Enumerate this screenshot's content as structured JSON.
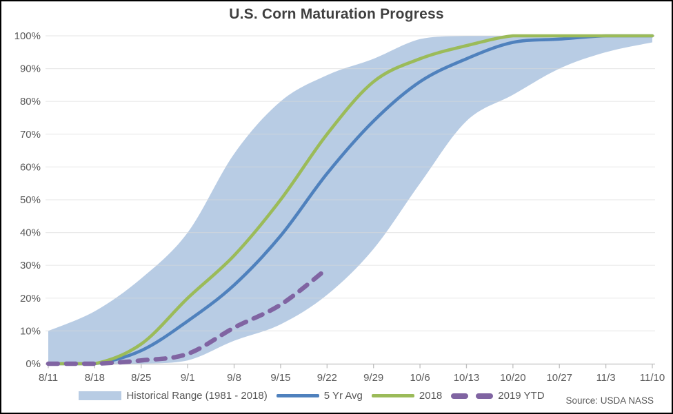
{
  "title": "U.S. Corn Maturation Progress",
  "source": "Source: USDA NASS",
  "chart_data": {
    "type": "area",
    "title": "U.S. Corn Maturation Progress",
    "xlabel": "",
    "ylabel": "",
    "ylim": [
      0,
      100
    ],
    "grid": true,
    "legend_position": "bottom",
    "y_ticks": [
      "0%",
      "10%",
      "20%",
      "30%",
      "40%",
      "50%",
      "60%",
      "70%",
      "80%",
      "90%",
      "100%"
    ],
    "categories": [
      "8/11",
      "8/18",
      "8/25",
      "9/1",
      "9/8",
      "9/15",
      "9/22",
      "9/29",
      "10/6",
      "10/13",
      "10/20",
      "10/27",
      "11/3",
      "11/10"
    ],
    "series": [
      {
        "name": "Historical Range (1981 - 2018)",
        "type": "band",
        "color": "#b8cce4",
        "top": [
          10,
          16,
          26,
          40,
          64,
          80,
          88,
          93,
          99,
          100,
          100,
          100,
          100,
          100
        ],
        "bottom": [
          0,
          0,
          0,
          1,
          7,
          12,
          21,
          35,
          55,
          74,
          82,
          90,
          95,
          98
        ]
      },
      {
        "name": "5 Yr Avg",
        "type": "line",
        "color": "#4f81bd",
        "values": [
          0,
          0,
          4,
          13,
          24,
          39,
          58,
          74,
          86,
          93,
          98,
          99,
          100,
          100
        ]
      },
      {
        "name": "2018",
        "type": "line",
        "color": "#9bbb59",
        "values": [
          0,
          0,
          6,
          20,
          33,
          50,
          70,
          86,
          93,
          97,
          100,
          100,
          100,
          100
        ]
      },
      {
        "name": "2019 YTD",
        "type": "line",
        "style": "dashed",
        "color": "#8064a2",
        "values": [
          0,
          0,
          1,
          3,
          11,
          18,
          29,
          null,
          null,
          null,
          null,
          null,
          null,
          null
        ]
      }
    ],
    "axis_colors": {
      "grid": "#d9d9d9",
      "axis": "#bfbfbf",
      "tick_label": "#595959"
    }
  }
}
